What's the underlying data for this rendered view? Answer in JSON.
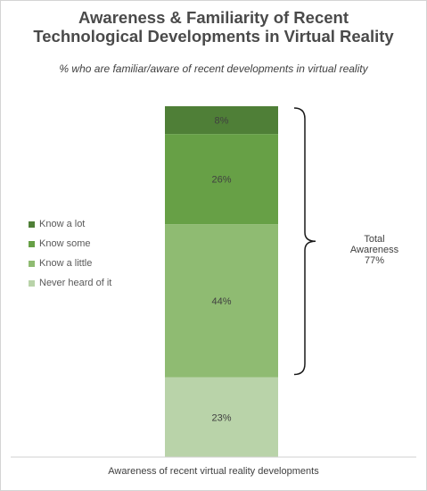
{
  "chart_data": {
    "type": "bar",
    "stacked": true,
    "title_lines": [
      "Awareness & Familiarity of Recent",
      "Technological Developments in Virtual Reality"
    ],
    "subtitle": "% who are familiar/aware of recent developments in virtual reality",
    "xlabel": "Awareness of recent virtual reality developments",
    "categories": [
      "Awareness of recent virtual reality developments"
    ],
    "series": [
      {
        "name": "Know a lot",
        "values": [
          8
        ],
        "label": "8%",
        "color": "#4f7f37"
      },
      {
        "name": "Know some",
        "values": [
          26
        ],
        "label": "26%",
        "color": "#67a046"
      },
      {
        "name": "Know a little",
        "values": [
          44
        ],
        "label": "44%",
        "color": "#8fbb72"
      },
      {
        "name": "Never heard of it",
        "values": [
          23
        ],
        "label": "23%",
        "color": "#b9d3a9"
      }
    ],
    "annotation": {
      "lines": [
        "Total",
        "Awareness",
        "77%"
      ],
      "value": 77
    },
    "legend_position": "left"
  }
}
